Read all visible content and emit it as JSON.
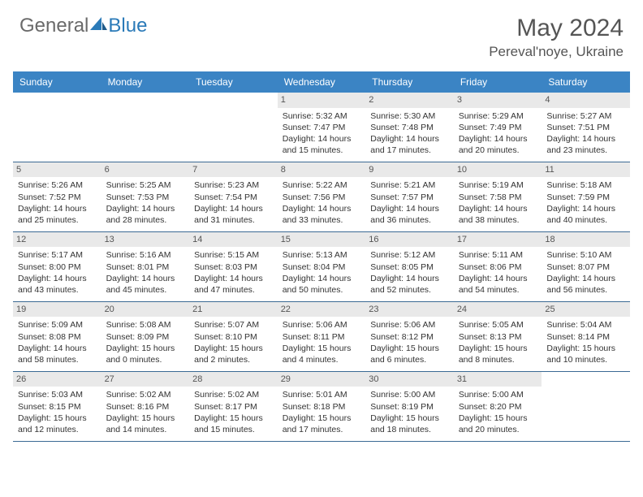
{
  "logo": {
    "text1": "General",
    "text2": "Blue"
  },
  "title": "May 2024",
  "location": "Pereval'noye, Ukraine",
  "colors": {
    "header_bg": "#3b84c4",
    "header_text": "#ffffff",
    "daynum_bg": "#e9e9e9",
    "border": "#3b6a94",
    "text": "#333333",
    "title_color": "#555555",
    "logo_gray": "#6a6a6a",
    "logo_blue": "#2a7ab8"
  },
  "typography": {
    "title_fontsize": 30,
    "location_fontsize": 17,
    "dayhead_fontsize": 12,
    "cell_fontsize": 10.5,
    "daynum_fontsize": 11
  },
  "dayheads": [
    "Sunday",
    "Monday",
    "Tuesday",
    "Wednesday",
    "Thursday",
    "Friday",
    "Saturday"
  ],
  "weeks": [
    [
      {
        "n": "",
        "sr": "",
        "ss": "",
        "dl": ""
      },
      {
        "n": "",
        "sr": "",
        "ss": "",
        "dl": ""
      },
      {
        "n": "",
        "sr": "",
        "ss": "",
        "dl": ""
      },
      {
        "n": "1",
        "sr": "Sunrise: 5:32 AM",
        "ss": "Sunset: 7:47 PM",
        "dl": "Daylight: 14 hours and 15 minutes."
      },
      {
        "n": "2",
        "sr": "Sunrise: 5:30 AM",
        "ss": "Sunset: 7:48 PM",
        "dl": "Daylight: 14 hours and 17 minutes."
      },
      {
        "n": "3",
        "sr": "Sunrise: 5:29 AM",
        "ss": "Sunset: 7:49 PM",
        "dl": "Daylight: 14 hours and 20 minutes."
      },
      {
        "n": "4",
        "sr": "Sunrise: 5:27 AM",
        "ss": "Sunset: 7:51 PM",
        "dl": "Daylight: 14 hours and 23 minutes."
      }
    ],
    [
      {
        "n": "5",
        "sr": "Sunrise: 5:26 AM",
        "ss": "Sunset: 7:52 PM",
        "dl": "Daylight: 14 hours and 25 minutes."
      },
      {
        "n": "6",
        "sr": "Sunrise: 5:25 AM",
        "ss": "Sunset: 7:53 PM",
        "dl": "Daylight: 14 hours and 28 minutes."
      },
      {
        "n": "7",
        "sr": "Sunrise: 5:23 AM",
        "ss": "Sunset: 7:54 PM",
        "dl": "Daylight: 14 hours and 31 minutes."
      },
      {
        "n": "8",
        "sr": "Sunrise: 5:22 AM",
        "ss": "Sunset: 7:56 PM",
        "dl": "Daylight: 14 hours and 33 minutes."
      },
      {
        "n": "9",
        "sr": "Sunrise: 5:21 AM",
        "ss": "Sunset: 7:57 PM",
        "dl": "Daylight: 14 hours and 36 minutes."
      },
      {
        "n": "10",
        "sr": "Sunrise: 5:19 AM",
        "ss": "Sunset: 7:58 PM",
        "dl": "Daylight: 14 hours and 38 minutes."
      },
      {
        "n": "11",
        "sr": "Sunrise: 5:18 AM",
        "ss": "Sunset: 7:59 PM",
        "dl": "Daylight: 14 hours and 40 minutes."
      }
    ],
    [
      {
        "n": "12",
        "sr": "Sunrise: 5:17 AM",
        "ss": "Sunset: 8:00 PM",
        "dl": "Daylight: 14 hours and 43 minutes."
      },
      {
        "n": "13",
        "sr": "Sunrise: 5:16 AM",
        "ss": "Sunset: 8:01 PM",
        "dl": "Daylight: 14 hours and 45 minutes."
      },
      {
        "n": "14",
        "sr": "Sunrise: 5:15 AM",
        "ss": "Sunset: 8:03 PM",
        "dl": "Daylight: 14 hours and 47 minutes."
      },
      {
        "n": "15",
        "sr": "Sunrise: 5:13 AM",
        "ss": "Sunset: 8:04 PM",
        "dl": "Daylight: 14 hours and 50 minutes."
      },
      {
        "n": "16",
        "sr": "Sunrise: 5:12 AM",
        "ss": "Sunset: 8:05 PM",
        "dl": "Daylight: 14 hours and 52 minutes."
      },
      {
        "n": "17",
        "sr": "Sunrise: 5:11 AM",
        "ss": "Sunset: 8:06 PM",
        "dl": "Daylight: 14 hours and 54 minutes."
      },
      {
        "n": "18",
        "sr": "Sunrise: 5:10 AM",
        "ss": "Sunset: 8:07 PM",
        "dl": "Daylight: 14 hours and 56 minutes."
      }
    ],
    [
      {
        "n": "19",
        "sr": "Sunrise: 5:09 AM",
        "ss": "Sunset: 8:08 PM",
        "dl": "Daylight: 14 hours and 58 minutes."
      },
      {
        "n": "20",
        "sr": "Sunrise: 5:08 AM",
        "ss": "Sunset: 8:09 PM",
        "dl": "Daylight: 15 hours and 0 minutes."
      },
      {
        "n": "21",
        "sr": "Sunrise: 5:07 AM",
        "ss": "Sunset: 8:10 PM",
        "dl": "Daylight: 15 hours and 2 minutes."
      },
      {
        "n": "22",
        "sr": "Sunrise: 5:06 AM",
        "ss": "Sunset: 8:11 PM",
        "dl": "Daylight: 15 hours and 4 minutes."
      },
      {
        "n": "23",
        "sr": "Sunrise: 5:06 AM",
        "ss": "Sunset: 8:12 PM",
        "dl": "Daylight: 15 hours and 6 minutes."
      },
      {
        "n": "24",
        "sr": "Sunrise: 5:05 AM",
        "ss": "Sunset: 8:13 PM",
        "dl": "Daylight: 15 hours and 8 minutes."
      },
      {
        "n": "25",
        "sr": "Sunrise: 5:04 AM",
        "ss": "Sunset: 8:14 PM",
        "dl": "Daylight: 15 hours and 10 minutes."
      }
    ],
    [
      {
        "n": "26",
        "sr": "Sunrise: 5:03 AM",
        "ss": "Sunset: 8:15 PM",
        "dl": "Daylight: 15 hours and 12 minutes."
      },
      {
        "n": "27",
        "sr": "Sunrise: 5:02 AM",
        "ss": "Sunset: 8:16 PM",
        "dl": "Daylight: 15 hours and 14 minutes."
      },
      {
        "n": "28",
        "sr": "Sunrise: 5:02 AM",
        "ss": "Sunset: 8:17 PM",
        "dl": "Daylight: 15 hours and 15 minutes."
      },
      {
        "n": "29",
        "sr": "Sunrise: 5:01 AM",
        "ss": "Sunset: 8:18 PM",
        "dl": "Daylight: 15 hours and 17 minutes."
      },
      {
        "n": "30",
        "sr": "Sunrise: 5:00 AM",
        "ss": "Sunset: 8:19 PM",
        "dl": "Daylight: 15 hours and 18 minutes."
      },
      {
        "n": "31",
        "sr": "Sunrise: 5:00 AM",
        "ss": "Sunset: 8:20 PM",
        "dl": "Daylight: 15 hours and 20 minutes."
      },
      {
        "n": "",
        "sr": "",
        "ss": "",
        "dl": ""
      }
    ]
  ]
}
